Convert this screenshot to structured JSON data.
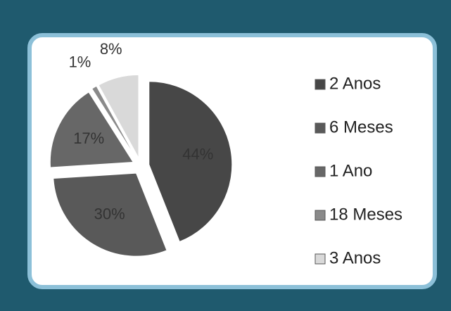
{
  "chart_data": {
    "type": "pie",
    "categories": [
      "2 Anos",
      "6 Meses",
      "1 Ano",
      "18 Meses",
      "3 Anos"
    ],
    "values": [
      44,
      30,
      17,
      1,
      8
    ],
    "value_labels": [
      "44%",
      "30%",
      "17%",
      "1%",
      "8%"
    ],
    "colors": [
      "#474747",
      "#595959",
      "#676767",
      "#8a8a8a",
      "#d9d9d9"
    ],
    "legend": "right"
  }
}
